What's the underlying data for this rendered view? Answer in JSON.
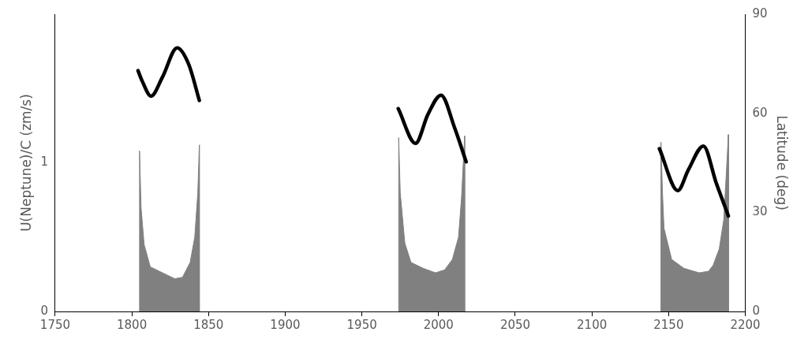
{
  "chart_data": {
    "type": "area",
    "ylabel": "U(Neptune)/C (zm/s)",
    "y2label": "Latitude (deg)",
    "xlim": [
      1750,
      2200
    ],
    "xticks": [
      1750,
      1800,
      1850,
      1900,
      1950,
      2000,
      2050,
      2100,
      2150,
      2200
    ],
    "ylim": [
      0,
      2
    ],
    "yticks": [
      0,
      1
    ],
    "y2lim": [
      0,
      90
    ],
    "y2ticks": [
      0,
      30,
      60,
      90
    ],
    "grid": false,
    "legend": false,
    "series": [
      {
        "type": "area",
        "color": "#808080",
        "x": [
          1805,
          1805,
          1806,
          1808,
          1812,
          1820,
          1828,
          1833,
          1838,
          1841,
          1843,
          1844,
          1844,
          1900,
          1974,
          1974,
          1975,
          1978,
          1982,
          1990,
          1998,
          2004,
          2009,
          2013,
          2015,
          2017,
          2017,
          2100,
          2145,
          2145,
          2146,
          2147,
          2152,
          2160,
          2170,
          2176,
          2179,
          2183,
          2186,
          2189,
          2189
        ],
        "values": [
          0,
          1.08,
          0.7,
          0.45,
          0.3,
          0.26,
          0.22,
          0.23,
          0.33,
          0.5,
          0.8,
          1.12,
          0,
          null,
          0,
          1.17,
          0.8,
          0.46,
          0.33,
          0.29,
          0.26,
          0.28,
          0.35,
          0.5,
          0.77,
          1.18,
          0,
          null,
          0,
          1.14,
          0.8,
          0.56,
          0.35,
          0.29,
          0.26,
          0.27,
          0.31,
          0.42,
          0.62,
          1.19,
          0
        ]
      },
      {
        "type": "line",
        "axis": "y2",
        "color": "#000000",
        "x": [
          1804,
          1806.7,
          1812.5,
          1820,
          1829.5,
          1837,
          1844,
          1900,
          1973.7,
          1985,
          1993,
          2001.6,
          2010.4,
          2018,
          2100,
          2144,
          2156,
          2163,
          2172.7,
          2181,
          2189
        ],
        "values": [
          72.9,
          69.8,
          65.2,
          71,
          79.8,
          74.9,
          63.9,
          null,
          61.4,
          50.9,
          59.6,
          65.5,
          55.7,
          45.3,
          null,
          49.3,
          36.6,
          43,
          50.1,
          39,
          28.9
        ]
      }
    ]
  }
}
